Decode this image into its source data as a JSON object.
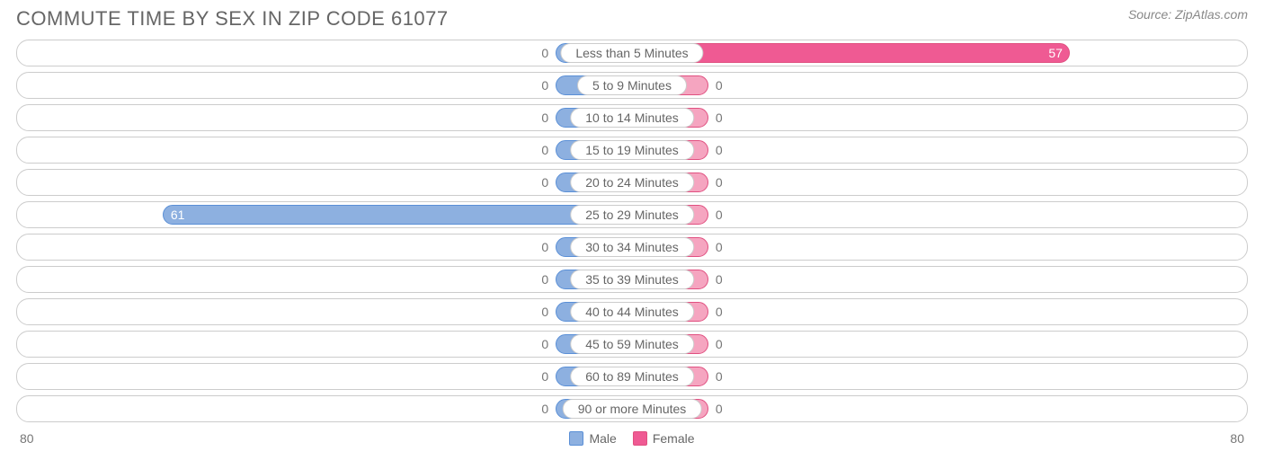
{
  "title": "COMMUTE TIME BY SEX IN ZIP CODE 61077",
  "source": "Source: ZipAtlas.com",
  "chart": {
    "type": "diverging-bar",
    "max": 80,
    "min_bar_pct": 6.2,
    "colors": {
      "male_fill": "#8db0e0",
      "male_border": "#5a8fd6",
      "female_fill": "#f5a5c0",
      "female_border": "#e05080",
      "female_bright": "#ef5a93",
      "row_border": "#cccccc",
      "background": "#ffffff",
      "text_muted": "#767676",
      "title_color": "#666666"
    },
    "categories": [
      {
        "label": "Less than 5 Minutes",
        "male": 0,
        "female": 57
      },
      {
        "label": "5 to 9 Minutes",
        "male": 0,
        "female": 0
      },
      {
        "label": "10 to 14 Minutes",
        "male": 0,
        "female": 0
      },
      {
        "label": "15 to 19 Minutes",
        "male": 0,
        "female": 0
      },
      {
        "label": "20 to 24 Minutes",
        "male": 0,
        "female": 0
      },
      {
        "label": "25 to 29 Minutes",
        "male": 61,
        "female": 0
      },
      {
        "label": "30 to 34 Minutes",
        "male": 0,
        "female": 0
      },
      {
        "label": "35 to 39 Minutes",
        "male": 0,
        "female": 0
      },
      {
        "label": "40 to 44 Minutes",
        "male": 0,
        "female": 0
      },
      {
        "label": "45 to 59 Minutes",
        "male": 0,
        "female": 0
      },
      {
        "label": "60 to 89 Minutes",
        "male": 0,
        "female": 0
      },
      {
        "label": "90 or more Minutes",
        "male": 0,
        "female": 0
      }
    ],
    "axis_left": "80",
    "axis_right": "80",
    "legend": {
      "male": "Male",
      "female": "Female"
    }
  }
}
